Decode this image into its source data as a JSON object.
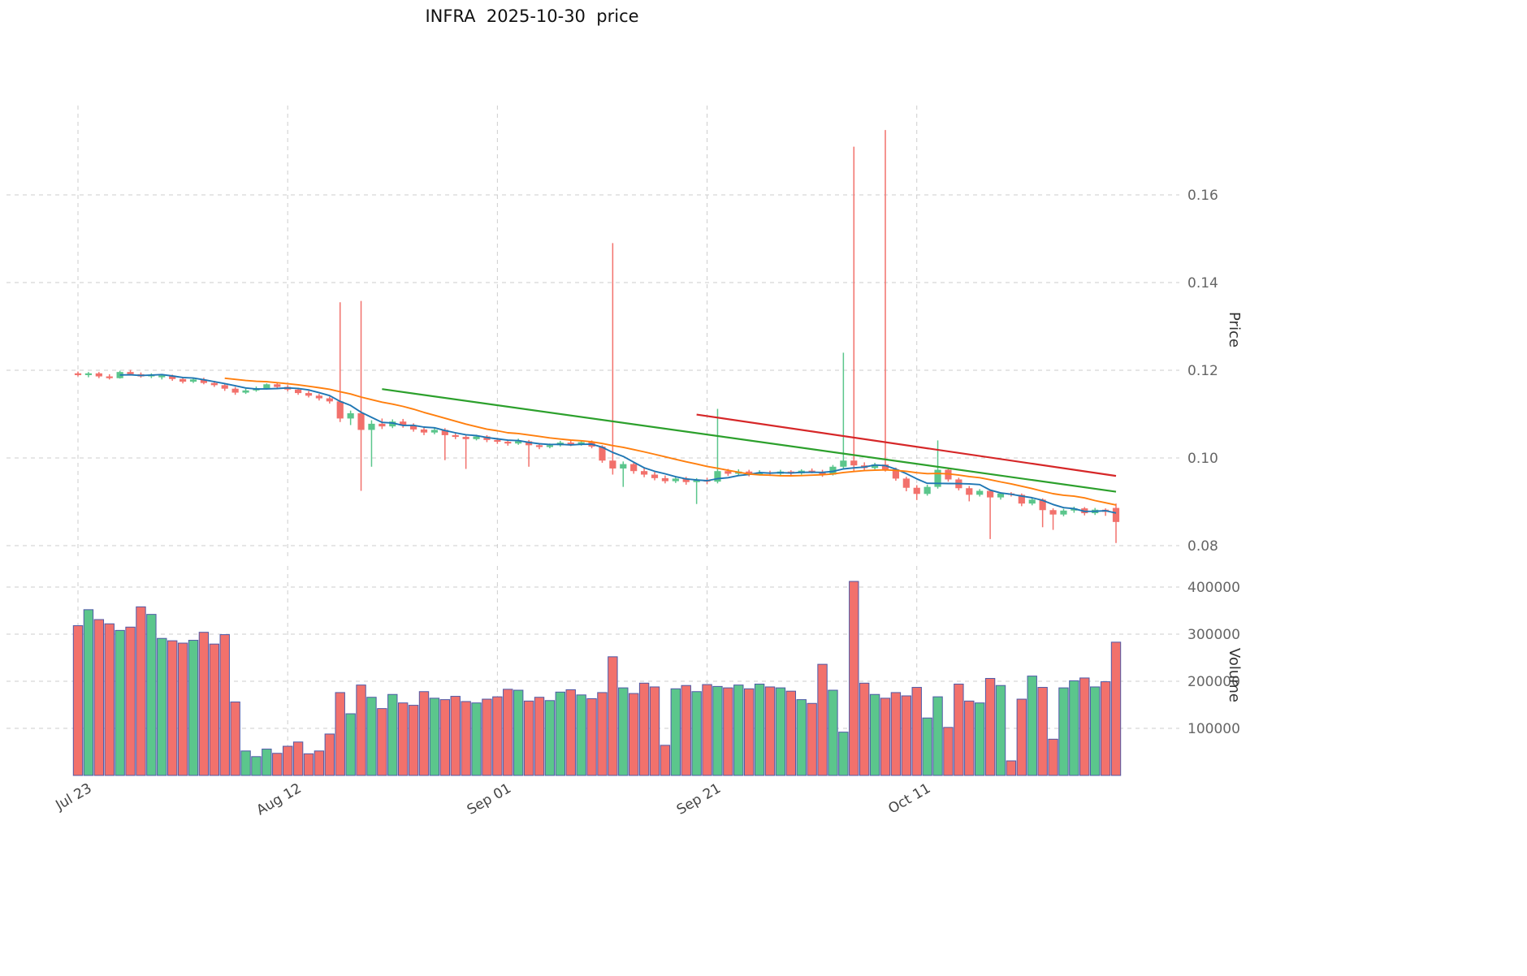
{
  "title": "INFRA  2025-10-30  price",
  "axes": {
    "price_label": "Price",
    "volume_label": "Volume",
    "price_ticks": [
      {
        "value": 0.08,
        "label": "0.08"
      },
      {
        "value": 0.1,
        "label": "0.10"
      },
      {
        "value": 0.12,
        "label": "0.12"
      },
      {
        "value": 0.14,
        "label": "0.14"
      },
      {
        "value": 0.16,
        "label": "0.16"
      }
    ],
    "volume_ticks": [
      {
        "value": 100000,
        "label": "100000"
      },
      {
        "value": 200000,
        "label": "200000"
      },
      {
        "value": 300000,
        "label": "300000"
      },
      {
        "value": 400000,
        "label": "400000"
      }
    ],
    "x_ticks": [
      {
        "index": 0,
        "label": "Jul 23"
      },
      {
        "index": 20,
        "label": "Aug 12"
      },
      {
        "index": 40,
        "label": "Sep 01"
      },
      {
        "index": 60,
        "label": "Sep 21"
      },
      {
        "index": 80,
        "label": "Oct 11"
      }
    ]
  },
  "style": {
    "up": "#5bc68c",
    "down": "#f2716c",
    "volume_edge": "#4f5aa8",
    "mav_colors": [
      "#1f77b4",
      "#ff7f0e"
    ],
    "trend_green": "#2ca02c",
    "trend_red": "#d62728",
    "grid": "#cdcdcd",
    "tick_text": "#666666"
  },
  "chart_data": {
    "type": "candlestick+volume",
    "symbol": "INFRA",
    "as_of": "2025-10-30",
    "title": "INFRA  2025-10-30  price",
    "ylabel": "Price",
    "ylabel_lower": "Volume",
    "price_ylim": [
      0.0767,
      0.1804
    ],
    "volume_ylim": [
      0,
      445000
    ],
    "grid": "dashed",
    "legend_position": "none",
    "overlays": {
      "mav": [
        5,
        15
      ],
      "trendlines": [
        {
          "name": "resistance-green",
          "color_key": "trend_green",
          "from": {
            "index": 29,
            "price": 0.1157
          },
          "to": {
            "index": 99,
            "price": 0.0923
          }
        },
        {
          "name": "resistance-red",
          "color_key": "trend_red",
          "from": {
            "index": 59,
            "price": 0.1099
          },
          "to": {
            "index": 99,
            "price": 0.0959
          }
        }
      ]
    },
    "columns": [
      "date",
      "open",
      "high",
      "low",
      "close",
      "volume"
    ],
    "rows": [
      [
        "2025-07-23",
        0.1193,
        0.1197,
        0.1186,
        0.1189,
        318000
      ],
      [
        "2025-07-24",
        0.1189,
        0.1196,
        0.1184,
        0.1193,
        352000
      ],
      [
        "2025-07-25",
        0.1193,
        0.1196,
        0.1182,
        0.1186,
        331000
      ],
      [
        "2025-07-26",
        0.1186,
        0.1191,
        0.1179,
        0.1182,
        322000
      ],
      [
        "2025-07-27",
        0.1182,
        0.1199,
        0.1181,
        0.1196,
        308000
      ],
      [
        "2025-07-28",
        0.1196,
        0.1201,
        0.1188,
        0.1191,
        315000
      ],
      [
        "2025-07-29",
        0.1191,
        0.1195,
        0.1183,
        0.1186,
        358000
      ],
      [
        "2025-07-30",
        0.1186,
        0.1193,
        0.1182,
        0.119,
        342000
      ],
      [
        "2025-07-31",
        0.1184,
        0.119,
        0.1179,
        0.1188,
        291000
      ],
      [
        "2025-08-01",
        0.1188,
        0.119,
        0.1176,
        0.118,
        286000
      ],
      [
        "2025-08-02",
        0.118,
        0.1184,
        0.117,
        0.1174,
        281000
      ],
      [
        "2025-08-03",
        0.1174,
        0.1182,
        0.1171,
        0.1179,
        287000
      ],
      [
        "2025-08-04",
        0.1179,
        0.1183,
        0.1168,
        0.1171,
        304000
      ],
      [
        "2025-08-05",
        0.1171,
        0.1176,
        0.1162,
        0.1166,
        279000
      ],
      [
        "2025-08-06",
        0.1166,
        0.1169,
        0.1153,
        0.1158,
        299000
      ],
      [
        "2025-08-07",
        0.1158,
        0.1162,
        0.1144,
        0.1149,
        156000
      ],
      [
        "2025-08-08",
        0.1149,
        0.1158,
        0.1146,
        0.1154,
        52000
      ],
      [
        "2025-08-09",
        0.1154,
        0.1163,
        0.1151,
        0.1159,
        40000
      ],
      [
        "2025-08-10",
        0.1159,
        0.117,
        0.1156,
        0.1168,
        56000
      ],
      [
        "2025-08-11",
        0.1168,
        0.1171,
        0.1158,
        0.1162,
        47000
      ],
      [
        "2025-08-12",
        0.1162,
        0.1166,
        0.1152,
        0.1156,
        62000
      ],
      [
        "2025-08-13",
        0.1156,
        0.116,
        0.1144,
        0.1148,
        71000
      ],
      [
        "2025-08-14",
        0.1148,
        0.1153,
        0.1138,
        0.1142,
        46000
      ],
      [
        "2025-08-15",
        0.1142,
        0.1146,
        0.1131,
        0.1136,
        52000
      ],
      [
        "2025-08-16",
        0.1136,
        0.114,
        0.1124,
        0.1129,
        88000
      ],
      [
        "2025-08-17",
        0.1129,
        0.1355,
        0.1082,
        0.109,
        176000
      ],
      [
        "2025-08-18",
        0.109,
        0.1108,
        0.1075,
        0.1102,
        131000
      ],
      [
        "2025-08-19",
        0.1102,
        0.1358,
        0.0925,
        0.1064,
        192000
      ],
      [
        "2025-08-20",
        0.1064,
        0.1086,
        0.098,
        0.1078,
        166000
      ],
      [
        "2025-08-21",
        0.1078,
        0.109,
        0.1066,
        0.1072,
        142000
      ],
      [
        "2025-08-22",
        0.1072,
        0.1088,
        0.1068,
        0.1083,
        172000
      ],
      [
        "2025-08-23",
        0.1083,
        0.1089,
        0.1069,
        0.1074,
        154000
      ],
      [
        "2025-08-24",
        0.1074,
        0.1079,
        0.106,
        0.1065,
        149000
      ],
      [
        "2025-08-25",
        0.1065,
        0.107,
        0.1052,
        0.1058,
        178000
      ],
      [
        "2025-08-26",
        0.1058,
        0.1069,
        0.1054,
        0.1064,
        164000
      ],
      [
        "2025-08-27",
        0.1064,
        0.1068,
        0.0995,
        0.1052,
        161000
      ],
      [
        "2025-08-28",
        0.1052,
        0.1058,
        0.1043,
        0.1048,
        168000
      ],
      [
        "2025-08-29",
        0.1048,
        0.1052,
        0.0975,
        0.1043,
        157000
      ],
      [
        "2025-08-30",
        0.1043,
        0.1053,
        0.104,
        0.1049,
        154000
      ],
      [
        "2025-08-31",
        0.1049,
        0.1052,
        0.1036,
        0.1041,
        162000
      ],
      [
        "2025-09-01",
        0.1041,
        0.1046,
        0.1032,
        0.1037,
        167000
      ],
      [
        "2025-09-02",
        0.1037,
        0.1041,
        0.1028,
        0.1033,
        183000
      ],
      [
        "2025-09-03",
        0.1033,
        0.1044,
        0.103,
        0.1038,
        181000
      ],
      [
        "2025-09-04",
        0.1038,
        0.1041,
        0.098,
        0.1029,
        158000
      ],
      [
        "2025-09-05",
        0.1029,
        0.1034,
        0.102,
        0.1025,
        166000
      ],
      [
        "2025-09-06",
        0.1025,
        0.1033,
        0.1022,
        0.1029,
        159000
      ],
      [
        "2025-09-07",
        0.1029,
        0.1039,
        0.1026,
        0.1035,
        177000
      ],
      [
        "2025-09-08",
        0.1035,
        0.1039,
        0.1027,
        0.1031,
        182000
      ],
      [
        "2025-09-09",
        0.1031,
        0.104,
        0.1028,
        0.1036,
        171000
      ],
      [
        "2025-09-10",
        0.1036,
        0.104,
        0.1022,
        0.1026,
        163000
      ],
      [
        "2025-09-11",
        0.1026,
        0.1029,
        0.0989,
        0.0994,
        176000
      ],
      [
        "2025-09-12",
        0.0994,
        0.149,
        0.0962,
        0.0976,
        252000
      ],
      [
        "2025-09-13",
        0.0976,
        0.0992,
        0.0934,
        0.0986,
        186000
      ],
      [
        "2025-09-14",
        0.0986,
        0.099,
        0.0964,
        0.097,
        174000
      ],
      [
        "2025-09-15",
        0.097,
        0.0979,
        0.0956,
        0.0962,
        196000
      ],
      [
        "2025-09-16",
        0.0962,
        0.0968,
        0.0949,
        0.0954,
        188000
      ],
      [
        "2025-09-17",
        0.0954,
        0.096,
        0.0942,
        0.0947,
        64000
      ],
      [
        "2025-09-18",
        0.0947,
        0.0958,
        0.0943,
        0.0953,
        184000
      ],
      [
        "2025-09-19",
        0.0953,
        0.0957,
        0.0939,
        0.0945,
        191000
      ],
      [
        "2025-09-20",
        0.0945,
        0.0954,
        0.0895,
        0.095,
        178000
      ],
      [
        "2025-09-21",
        0.095,
        0.0955,
        0.094,
        0.0946,
        193000
      ],
      [
        "2025-09-22",
        0.0946,
        0.1112,
        0.0942,
        0.097,
        189000
      ],
      [
        "2025-09-23",
        0.097,
        0.0975,
        0.0959,
        0.0964,
        186000
      ],
      [
        "2025-09-24",
        0.0964,
        0.0974,
        0.096,
        0.0969,
        192000
      ],
      [
        "2025-09-25",
        0.0969,
        0.0973,
        0.0958,
        0.0963,
        184000
      ],
      [
        "2025-09-26",
        0.0963,
        0.0972,
        0.096,
        0.0967,
        194000
      ],
      [
        "2025-09-27",
        0.0967,
        0.0971,
        0.0959,
        0.0964,
        188000
      ],
      [
        "2025-09-28",
        0.0964,
        0.0973,
        0.0961,
        0.0969,
        186000
      ],
      [
        "2025-09-29",
        0.0969,
        0.0972,
        0.0959,
        0.0965,
        179000
      ],
      [
        "2025-09-30",
        0.0965,
        0.0974,
        0.0962,
        0.0971,
        161000
      ],
      [
        "2025-10-01",
        0.0971,
        0.0976,
        0.0965,
        0.0968,
        153000
      ],
      [
        "2025-10-02",
        0.0968,
        0.0973,
        0.0957,
        0.0962,
        236000
      ],
      [
        "2025-10-03",
        0.0962,
        0.0984,
        0.096,
        0.098,
        181000
      ],
      [
        "2025-10-04",
        0.098,
        0.124,
        0.0976,
        0.0994,
        92000
      ],
      [
        "2025-10-05",
        0.0994,
        0.171,
        0.0968,
        0.0983,
        412000
      ],
      [
        "2025-10-06",
        0.0983,
        0.099,
        0.0972,
        0.0977,
        196000
      ],
      [
        "2025-10-07",
        0.0977,
        0.0989,
        0.0974,
        0.0985,
        172000
      ],
      [
        "2025-10-08",
        0.0985,
        0.1748,
        0.0969,
        0.0974,
        164000
      ],
      [
        "2025-10-09",
        0.0974,
        0.0978,
        0.0948,
        0.0953,
        176000
      ],
      [
        "2025-10-10",
        0.0953,
        0.0957,
        0.0924,
        0.0932,
        169000
      ],
      [
        "2025-10-11",
        0.0932,
        0.0938,
        0.0904,
        0.0918,
        187000
      ],
      [
        "2025-10-12",
        0.0918,
        0.0939,
        0.0914,
        0.0934,
        122000
      ],
      [
        "2025-10-13",
        0.0934,
        0.104,
        0.093,
        0.0973,
        167000
      ],
      [
        "2025-10-14",
        0.0973,
        0.0977,
        0.0946,
        0.0951,
        102000
      ],
      [
        "2025-10-15",
        0.0951,
        0.0955,
        0.0926,
        0.0931,
        194000
      ],
      [
        "2025-10-16",
        0.0931,
        0.0936,
        0.0901,
        0.0916,
        158000
      ],
      [
        "2025-10-17",
        0.0916,
        0.0929,
        0.0912,
        0.0925,
        154000
      ],
      [
        "2025-10-18",
        0.0925,
        0.0928,
        0.0815,
        0.091,
        206000
      ],
      [
        "2025-10-19",
        0.091,
        0.0922,
        0.0905,
        0.0919,
        191000
      ],
      [
        "2025-10-20",
        0.0919,
        0.0922,
        0.0912,
        0.0916,
        31000
      ],
      [
        "2025-10-21",
        0.0916,
        0.0919,
        0.089,
        0.0896,
        162000
      ],
      [
        "2025-10-22",
        0.0896,
        0.0909,
        0.0892,
        0.0905,
        211000
      ],
      [
        "2025-10-23",
        0.0905,
        0.0908,
        0.0842,
        0.0881,
        187000
      ],
      [
        "2025-10-24",
        0.0881,
        0.0885,
        0.0836,
        0.0871,
        77000
      ],
      [
        "2025-10-25",
        0.0871,
        0.0884,
        0.0867,
        0.088,
        186000
      ],
      [
        "2025-10-26",
        0.088,
        0.0889,
        0.0875,
        0.0885,
        201000
      ],
      [
        "2025-10-27",
        0.0885,
        0.0888,
        0.0869,
        0.0874,
        207000
      ],
      [
        "2025-10-28",
        0.0874,
        0.0886,
        0.087,
        0.0882,
        188000
      ],
      [
        "2025-10-29",
        0.0882,
        0.0885,
        0.0868,
        0.0877,
        199000
      ],
      [
        "2025-10-30",
        0.0886,
        0.0896,
        0.0806,
        0.0854,
        283000
      ]
    ]
  }
}
